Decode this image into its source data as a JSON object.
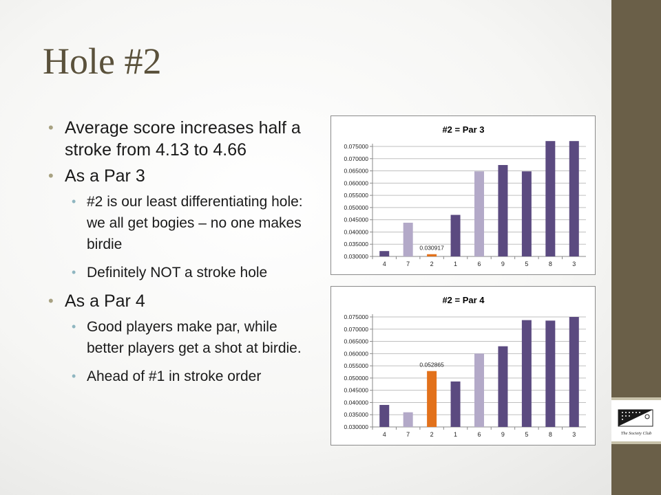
{
  "slide": {
    "title": "Hole #2",
    "bullets": [
      {
        "level": 1,
        "text": "Average score increases half a stroke from 4.13 to 4.66"
      },
      {
        "level": 1,
        "text": "As a Par 3"
      },
      {
        "level": 2,
        "text": "#2 is our least differentiating hole:  we all get bogies – no one makes birdie"
      },
      {
        "level": 2,
        "text": "Definitely NOT a stroke hole"
      },
      {
        "level": 1,
        "text": "As a Par 4"
      },
      {
        "level": 2,
        "text": "Good players make par, while better players get a shot at birdie."
      },
      {
        "level": 2,
        "text": "Ahead of #1 in stroke order"
      }
    ]
  },
  "colors": {
    "sidebar": "#6a5f48",
    "bar_dark": "#5b4a80",
    "bar_light": "#b3a9c8",
    "bar_highlight": "#e2711b",
    "title": "#5a513b"
  },
  "logo": {
    "caption": "The Society Club"
  },
  "chart_data": [
    {
      "type": "bar",
      "title": "#2 = Par 3",
      "categories": [
        "4",
        "7",
        "2",
        "1",
        "6",
        "9",
        "5",
        "8",
        "3"
      ],
      "values": [
        0.0322,
        0.0438,
        0.030917,
        0.047,
        0.0648,
        0.0674,
        0.0648,
        0.0772,
        0.0772
      ],
      "bar_colors": [
        "dark",
        "light",
        "highlight",
        "dark",
        "light",
        "dark",
        "dark",
        "dark",
        "dark"
      ],
      "data_labels": {
        "2": "0.030917"
      },
      "ylim": [
        0.03,
        0.075
      ],
      "yticks": [
        "0.030000",
        "0.035000",
        "0.040000",
        "0.045000",
        "0.050000",
        "0.055000",
        "0.060000",
        "0.065000",
        "0.070000",
        "0.075000"
      ],
      "xlabel": "",
      "ylabel": "",
      "grid": true
    },
    {
      "type": "bar",
      "title": "#2 = Par 4",
      "categories": [
        "4",
        "7",
        "2",
        "1",
        "6",
        "9",
        "5",
        "8",
        "3"
      ],
      "values": [
        0.039,
        0.036,
        0.052865,
        0.0486,
        0.06,
        0.063,
        0.0737,
        0.0735,
        0.075
      ],
      "bar_colors": [
        "dark",
        "light",
        "highlight",
        "dark",
        "light",
        "dark",
        "dark",
        "dark",
        "dark"
      ],
      "data_labels": {
        "2": "0.052865"
      },
      "ylim": [
        0.03,
        0.075
      ],
      "yticks": [
        "0.030000",
        "0.035000",
        "0.040000",
        "0.045000",
        "0.050000",
        "0.055000",
        "0.060000",
        "0.065000",
        "0.070000",
        "0.075000"
      ],
      "xlabel": "",
      "ylabel": "",
      "grid": true
    }
  ]
}
